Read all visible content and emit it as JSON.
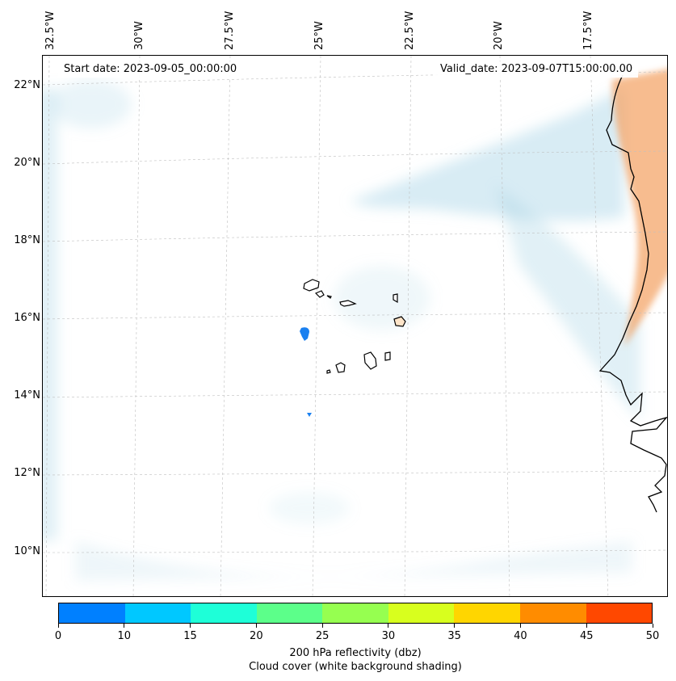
{
  "header": {
    "start_date": "Start date: 2023-09-05_00:00:00",
    "valid_date": "Valid_date: 2023-09-07T15:00:00.00"
  },
  "axes": {
    "longitude_labels": [
      "32.5°W",
      "30°W",
      "27.5°W",
      "25°W",
      "22.5°W",
      "20°W",
      "17.5°W"
    ],
    "latitude_labels": [
      "22°N",
      "20°N",
      "18°N",
      "16°N",
      "14°N",
      "12°N",
      "10°N"
    ]
  },
  "colorbar": {
    "ticks": [
      "0",
      "10",
      "15",
      "20",
      "25",
      "30",
      "35",
      "40",
      "45",
      "50"
    ],
    "colors": [
      "#0080ff",
      "#00c8ff",
      "#1effd8",
      "#5cff8a",
      "#96ff50",
      "#d8ff1e",
      "#ffd600",
      "#ff8c00",
      "#ff4800"
    ],
    "label_line1": "200 hPa reflectivity (dbz)",
    "label_line2": "Cloud cover (white background shading)"
  },
  "map_colors": {
    "cloud": "#a8d4e6",
    "warm": "#f4a060",
    "echo": "#1a80f0",
    "coast": "#000000",
    "grid": "#bfbfbf"
  }
}
